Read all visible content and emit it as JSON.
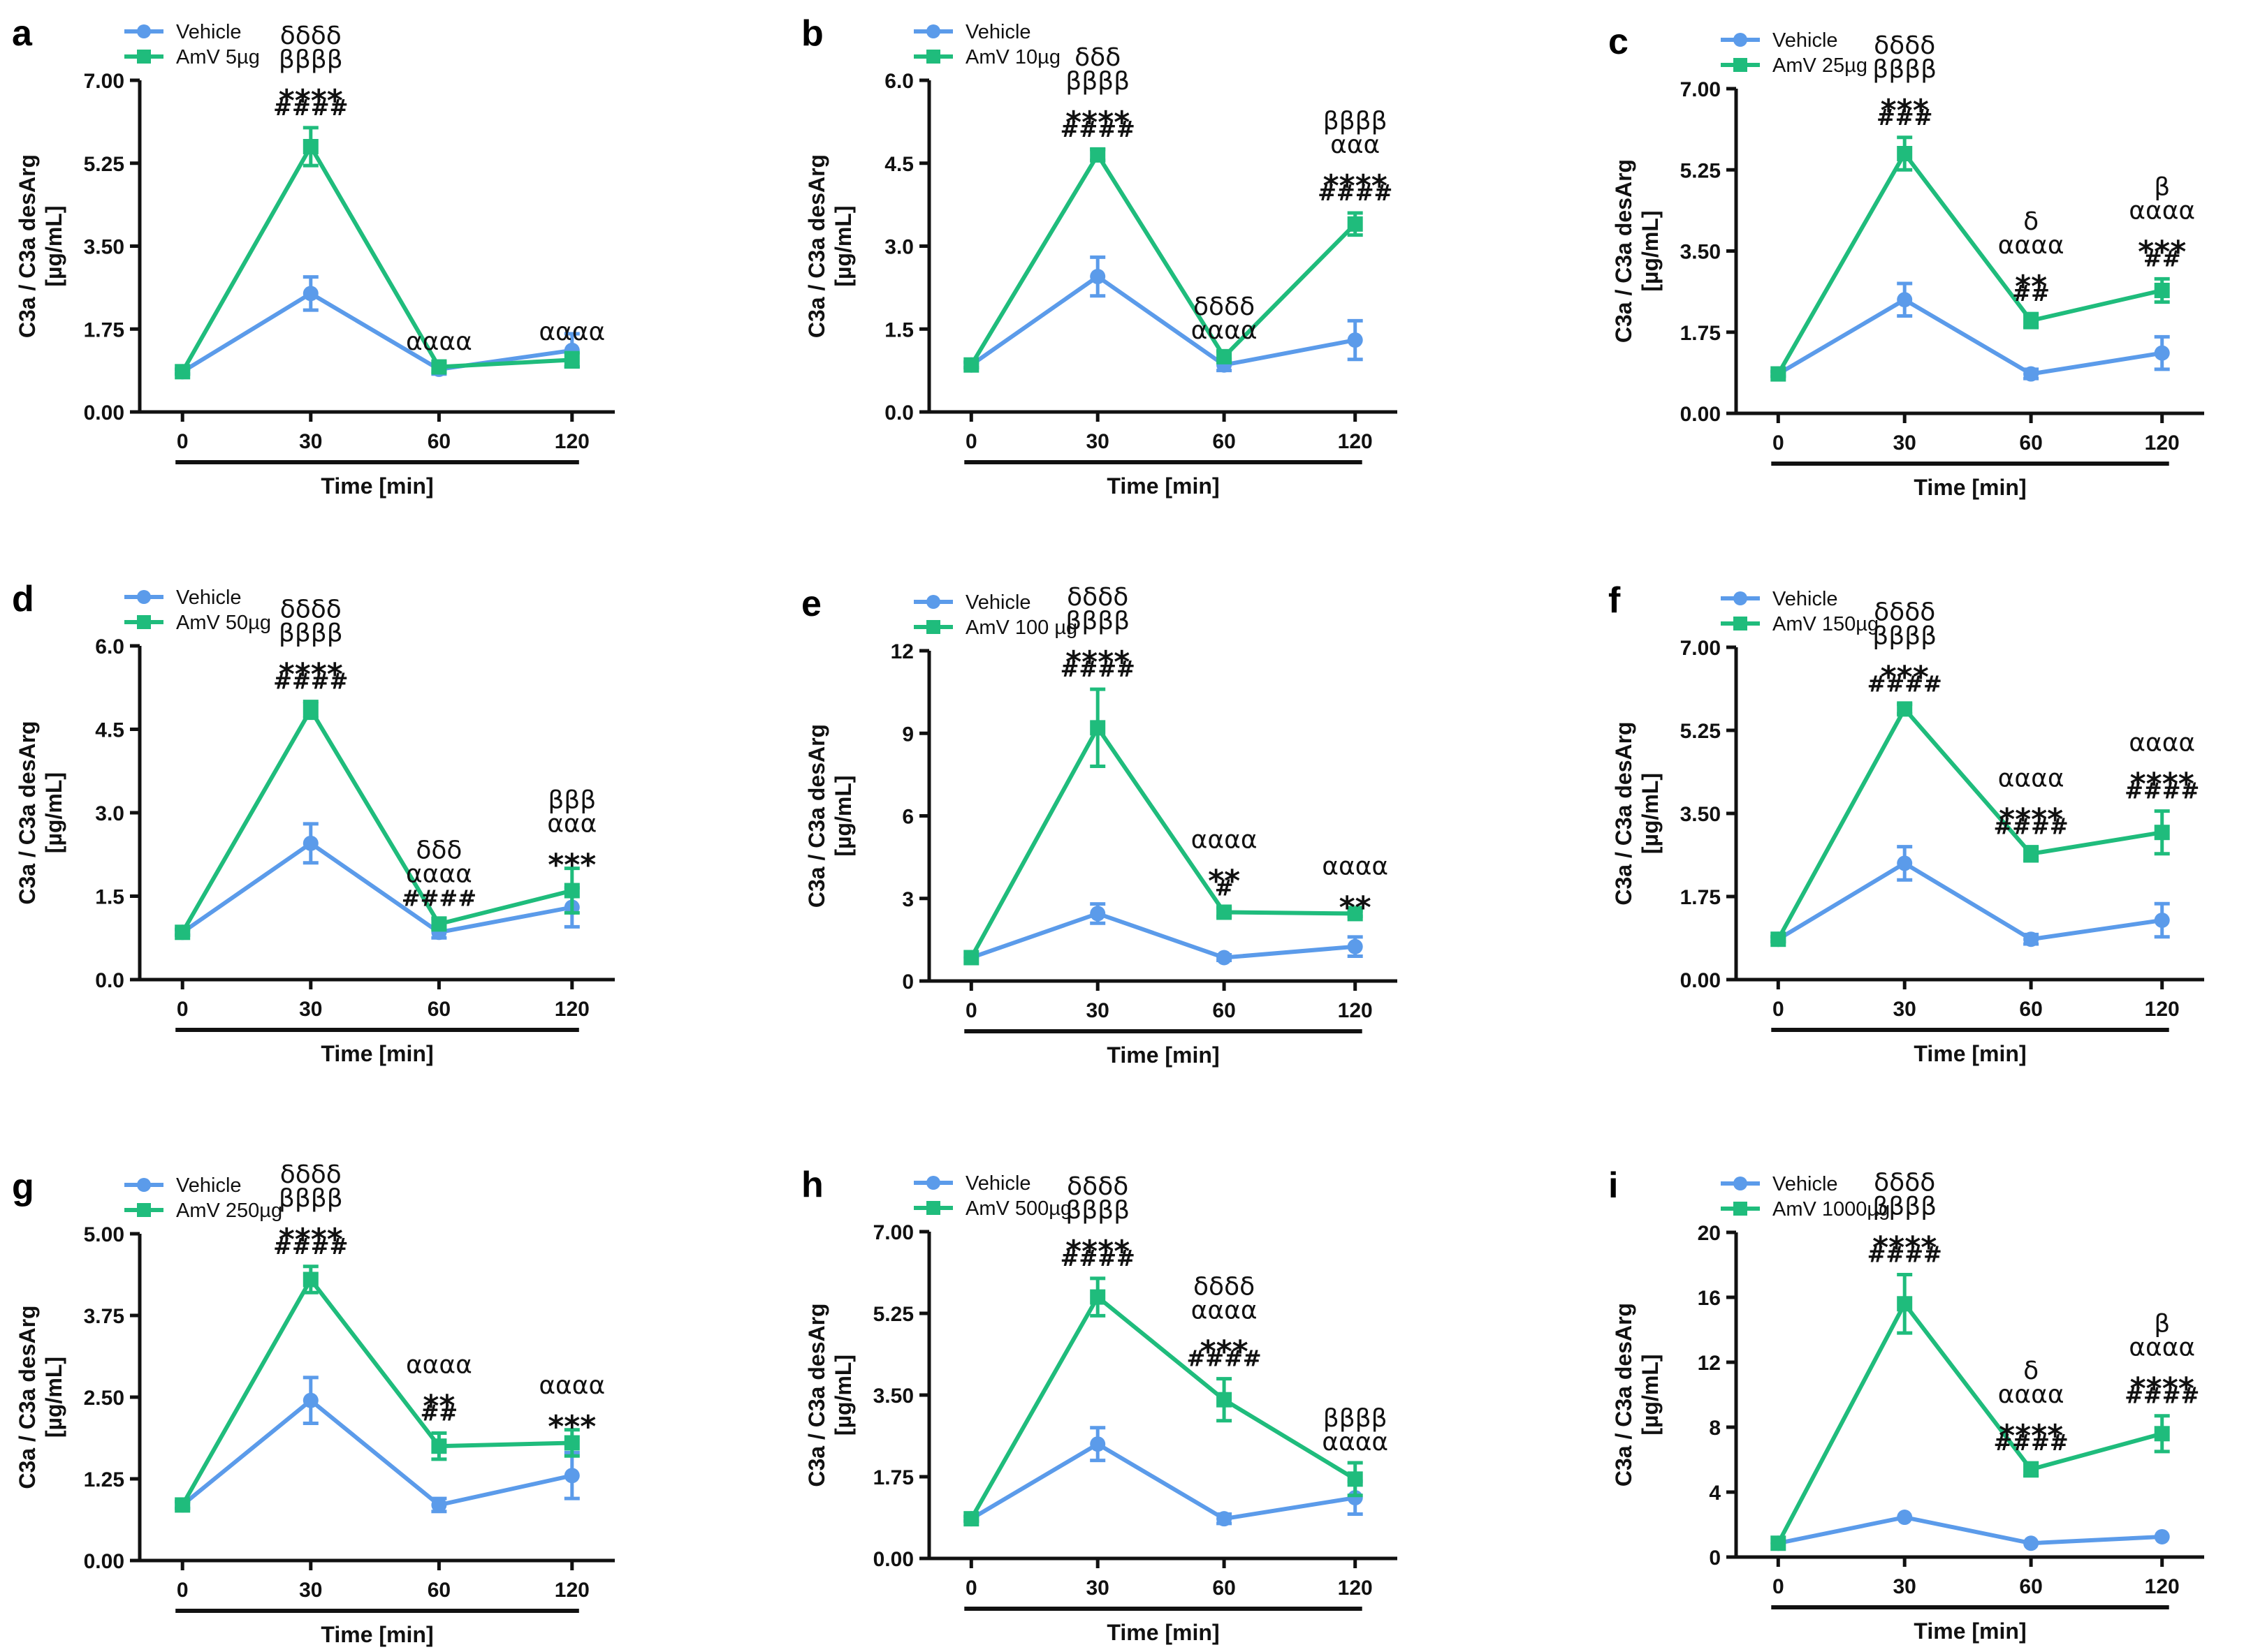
{
  "colors": {
    "vehicle": "#5b9bea",
    "amv": "#1fbc7c",
    "axis": "#111111"
  },
  "x_axis_label": "Time [min]",
  "y_axis_label_line1": "C3a / C3a desArg",
  "y_axis_label_line2": "[µg/mL]",
  "x_categories": [
    "0",
    "30",
    "60",
    "120"
  ],
  "chart_data": [
    {
      "type": "line",
      "panel": "a",
      "ylim": [
        0,
        7
      ],
      "yticks": [
        "0.00",
        "1.75",
        "3.50",
        "5.25",
        "7.00"
      ],
      "x": [
        0,
        30,
        60,
        120
      ],
      "xlabel": "Time [min]",
      "ylabel": "C3a / C3a desArg [µg/mL]",
      "series": [
        {
          "name": "Vehicle",
          "values": [
            0.85,
            2.5,
            0.9,
            1.3
          ],
          "errors": [
            0.05,
            0.35,
            0.1,
            0.35
          ]
        },
        {
          "name": "AmV 5µg",
          "values": [
            0.85,
            5.6,
            0.95,
            1.1
          ],
          "errors": [
            0.05,
            0.4,
            0.1,
            0.15
          ]
        }
      ],
      "annotations": [
        {
          "index": 1,
          "lines": [
            "δδδδ",
            "ββββ",
            "****",
            "####"
          ]
        },
        {
          "index": 2,
          "lines": [
            "αααα"
          ]
        },
        {
          "index": 3,
          "lines": [
            "αααα"
          ]
        }
      ]
    },
    {
      "type": "line",
      "panel": "b",
      "ylim": [
        0,
        6
      ],
      "yticks": [
        "0.0",
        "1.5",
        "3.0",
        "4.5",
        "6.0"
      ],
      "x": [
        0,
        30,
        60,
        120
      ],
      "xlabel": "Time [min]",
      "ylabel": "C3a / C3a desArg [µg/mL]",
      "series": [
        {
          "name": "Vehicle",
          "values": [
            0.85,
            2.45,
            0.85,
            1.3
          ],
          "errors": [
            0.05,
            0.35,
            0.1,
            0.35
          ]
        },
        {
          "name": "AmV 10µg",
          "values": [
            0.85,
            4.65,
            1.0,
            3.4
          ],
          "errors": [
            0.05,
            0.1,
            0.1,
            0.2
          ]
        }
      ],
      "annotations": [
        {
          "index": 1,
          "lines": [
            "δδδ",
            "ββββ",
            "****",
            "####"
          ]
        },
        {
          "index": 2,
          "lines": [
            "δδδδ",
            "αααα"
          ]
        },
        {
          "index": 3,
          "lines": [
            "ββββ",
            "ααα",
            "****",
            "####"
          ]
        }
      ]
    },
    {
      "type": "line",
      "panel": "c",
      "ylim": [
        0,
        7
      ],
      "yticks": [
        "0.00",
        "1.75",
        "3.50",
        "5.25",
        "7.00"
      ],
      "x": [
        0,
        30,
        60,
        120
      ],
      "xlabel": "Time [min]",
      "ylabel": "C3a / C3a desArg [µg/mL]",
      "series": [
        {
          "name": "Vehicle",
          "values": [
            0.85,
            2.45,
            0.85,
            1.3
          ],
          "errors": [
            0.05,
            0.35,
            0.1,
            0.35
          ]
        },
        {
          "name": "AmV 25µg",
          "values": [
            0.85,
            5.6,
            2.0,
            2.65
          ],
          "errors": [
            0.05,
            0.35,
            0.15,
            0.25
          ]
        }
      ],
      "annotations": [
        {
          "index": 1,
          "lines": [
            "δδδδ",
            "ββββ",
            "***",
            "###"
          ]
        },
        {
          "index": 2,
          "lines": [
            "δ",
            "αααα",
            "**",
            "##"
          ]
        },
        {
          "index": 3,
          "lines": [
            "β",
            "αααα",
            "***",
            "##"
          ]
        }
      ]
    },
    {
      "type": "line",
      "panel": "d",
      "ylim": [
        0,
        6
      ],
      "yticks": [
        "0.0",
        "1.5",
        "3.0",
        "4.5",
        "6.0"
      ],
      "x": [
        0,
        30,
        60,
        120
      ],
      "xlabel": "Time [min]",
      "ylabel": "C3a / C3a desArg [µg/mL]",
      "series": [
        {
          "name": "Vehicle",
          "values": [
            0.85,
            2.45,
            0.85,
            1.3
          ],
          "errors": [
            0.05,
            0.35,
            0.1,
            0.35
          ]
        },
        {
          "name": "AmV 50µg",
          "values": [
            0.85,
            4.85,
            1.0,
            1.6
          ],
          "errors": [
            0.05,
            0.15,
            0.1,
            0.4
          ]
        }
      ],
      "annotations": [
        {
          "index": 1,
          "lines": [
            "δδδδ",
            "ββββ",
            "****",
            "####"
          ]
        },
        {
          "index": 2,
          "lines": [
            "δδδ",
            "αααα",
            "####"
          ]
        },
        {
          "index": 3,
          "lines": [
            "βββ",
            "ααα",
            "***"
          ]
        }
      ]
    },
    {
      "type": "line",
      "panel": "e",
      "ylim": [
        0,
        12
      ],
      "yticks": [
        "0",
        "3",
        "6",
        "9",
        "12"
      ],
      "x": [
        0,
        30,
        60,
        120
      ],
      "xlabel": "Time [min]",
      "ylabel": "C3a / C3a desArg [µg/mL]",
      "series": [
        {
          "name": "Vehicle",
          "values": [
            0.85,
            2.45,
            0.85,
            1.25
          ],
          "errors": [
            0.05,
            0.35,
            0.1,
            0.35
          ]
        },
        {
          "name": "AmV 100 µg",
          "values": [
            0.85,
            9.2,
            2.5,
            2.45
          ],
          "errors": [
            0.05,
            1.4,
            0.15,
            0.1
          ]
        }
      ],
      "annotations": [
        {
          "index": 1,
          "lines": [
            "δδδδ",
            "ββββ",
            "****",
            "####"
          ]
        },
        {
          "index": 2,
          "lines": [
            "αααα",
            "**",
            "#"
          ]
        },
        {
          "index": 3,
          "lines": [
            "αααα",
            "**"
          ]
        }
      ]
    },
    {
      "type": "line",
      "panel": "f",
      "ylim": [
        0,
        7
      ],
      "yticks": [
        "0.00",
        "1.75",
        "3.50",
        "5.25",
        "7.00"
      ],
      "x": [
        0,
        30,
        60,
        120
      ],
      "xlabel": "Time [min]",
      "ylabel": "C3a / C3a desArg [µg/mL]",
      "series": [
        {
          "name": "Vehicle",
          "values": [
            0.85,
            2.45,
            0.85,
            1.25
          ],
          "errors": [
            0.05,
            0.35,
            0.1,
            0.35
          ]
        },
        {
          "name": "AmV 150µg",
          "values": [
            0.85,
            5.7,
            2.65,
            3.1
          ],
          "errors": [
            0.05,
            0.1,
            0.15,
            0.45
          ]
        }
      ],
      "annotations": [
        {
          "index": 1,
          "lines": [
            "δδδδ",
            "ββββ",
            "***",
            "####"
          ]
        },
        {
          "index": 2,
          "lines": [
            "αααα",
            "****",
            "####"
          ]
        },
        {
          "index": 3,
          "lines": [
            "αααα",
            "****",
            "####"
          ]
        }
      ]
    },
    {
      "type": "line",
      "panel": "g",
      "ylim": [
        0,
        5
      ],
      "yticks": [
        "0.00",
        "1.25",
        "2.50",
        "3.75",
        "5.00"
      ],
      "x": [
        0,
        30,
        60,
        120
      ],
      "xlabel": "Time [min]",
      "ylabel": "C3a / C3a desArg [µg/mL]",
      "series": [
        {
          "name": "Vehicle",
          "values": [
            0.85,
            2.45,
            0.85,
            1.3
          ],
          "errors": [
            0.05,
            0.35,
            0.1,
            0.35
          ]
        },
        {
          "name": "AmV 250µg",
          "values": [
            0.85,
            4.3,
            1.75,
            1.8
          ],
          "errors": [
            0.05,
            0.2,
            0.2,
            0.2
          ]
        }
      ],
      "annotations": [
        {
          "index": 1,
          "lines": [
            "δδδδ",
            "ββββ",
            "****",
            "####"
          ]
        },
        {
          "index": 2,
          "lines": [
            "αααα",
            "**",
            "##"
          ]
        },
        {
          "index": 3,
          "lines": [
            "αααα",
            "***"
          ]
        }
      ]
    },
    {
      "type": "line",
      "panel": "h",
      "ylim": [
        0,
        7
      ],
      "yticks": [
        "0.00",
        "1.75",
        "3.50",
        "5.25",
        "7.00"
      ],
      "x": [
        0,
        30,
        60,
        120
      ],
      "xlabel": "Time [min]",
      "ylabel": "C3a / C3a desArg [µg/mL]",
      "series": [
        {
          "name": "Vehicle",
          "values": [
            0.85,
            2.45,
            0.85,
            1.3
          ],
          "errors": [
            0.05,
            0.35,
            0.1,
            0.35
          ]
        },
        {
          "name": "AmV 500µg",
          "values": [
            0.85,
            5.6,
            3.4,
            1.7
          ],
          "errors": [
            0.05,
            0.4,
            0.45,
            0.35
          ]
        }
      ],
      "annotations": [
        {
          "index": 1,
          "lines": [
            "δδδδ",
            "ββββ",
            "****",
            "####"
          ]
        },
        {
          "index": 2,
          "lines": [
            "δδδδ",
            "αααα",
            "***",
            "####"
          ]
        },
        {
          "index": 3,
          "lines": [
            "ββββ",
            "αααα"
          ]
        }
      ]
    },
    {
      "type": "line",
      "panel": "i",
      "ylim": [
        0,
        20
      ],
      "yticks": [
        "0",
        "4",
        "8",
        "12",
        "16",
        "20"
      ],
      "x": [
        0,
        30,
        60,
        120
      ],
      "xlabel": "Time [min]",
      "ylabel": "C3a / C3a desArg [µg/mL]",
      "series": [
        {
          "name": "Vehicle",
          "values": [
            0.85,
            2.45,
            0.85,
            1.25
          ],
          "errors": [
            0.05,
            0.1,
            0.05,
            0.1
          ]
        },
        {
          "name": "AmV 1000µg",
          "values": [
            0.85,
            15.6,
            5.4,
            7.6
          ],
          "errors": [
            0.05,
            1.8,
            0.4,
            1.1
          ]
        }
      ],
      "annotations": [
        {
          "index": 1,
          "lines": [
            "δδδδ",
            "ββββ",
            "****",
            "####"
          ]
        },
        {
          "index": 2,
          "lines": [
            "δ",
            "αααα",
            "****",
            "####"
          ]
        },
        {
          "index": 3,
          "lines": [
            "β",
            "αααα",
            "****",
            "####"
          ]
        }
      ]
    }
  ]
}
